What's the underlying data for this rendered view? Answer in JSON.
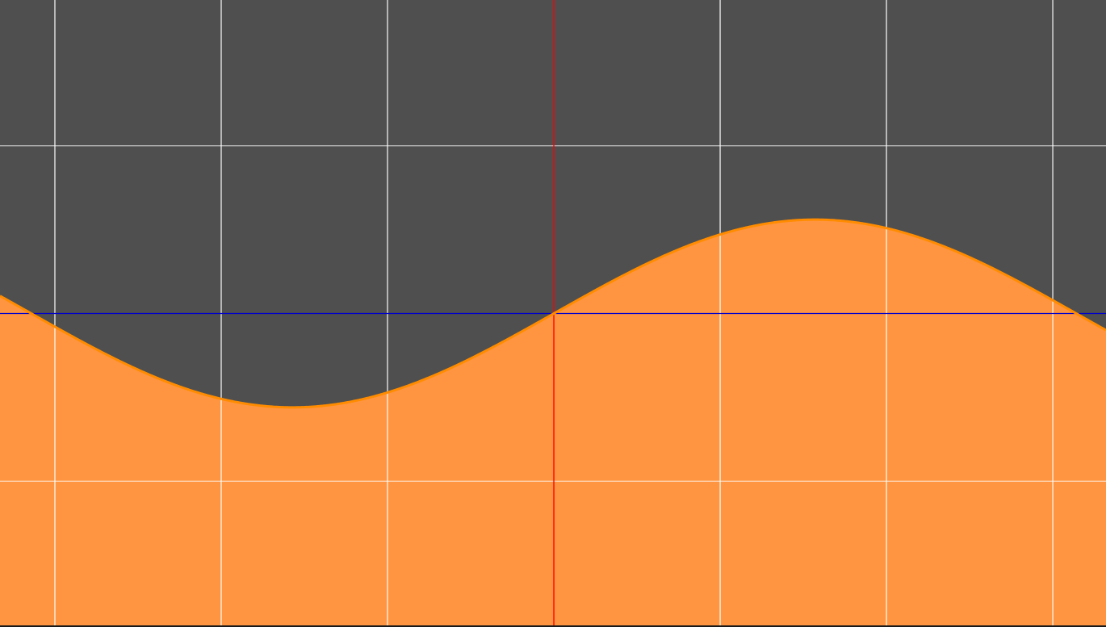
{
  "chart_data": {
    "type": "area",
    "title": "",
    "xlabel": "",
    "ylabel": "",
    "xlim": [
      -3.33,
      3.32
    ],
    "ylim": [
      -1.87,
      1.87
    ],
    "grid": true,
    "grid_x_step": 1,
    "grid_y_step": 1,
    "axes_visible": true,
    "function": "0.56 * sin(x)",
    "series": [
      {
        "type": "area",
        "amplitude": 0.56,
        "period": 6.283185307179586,
        "phase": 0,
        "offset": 0,
        "x": [
          -3.1416,
          -2.3562,
          -1.5708,
          -0.7854,
          0,
          0.7854,
          1.5708,
          2.3562,
          3.1416
        ],
        "y": [
          0,
          -0.396,
          -0.56,
          -0.396,
          0,
          0.396,
          0.56,
          0.396,
          0
        ]
      }
    ],
    "colors": {
      "background": "#4f4f4f",
      "fill": "#ff9540",
      "line": "#ff8c00",
      "grid": "#ffffff",
      "x_axis": "#0000cc",
      "y_axis": "#ff0000"
    }
  }
}
